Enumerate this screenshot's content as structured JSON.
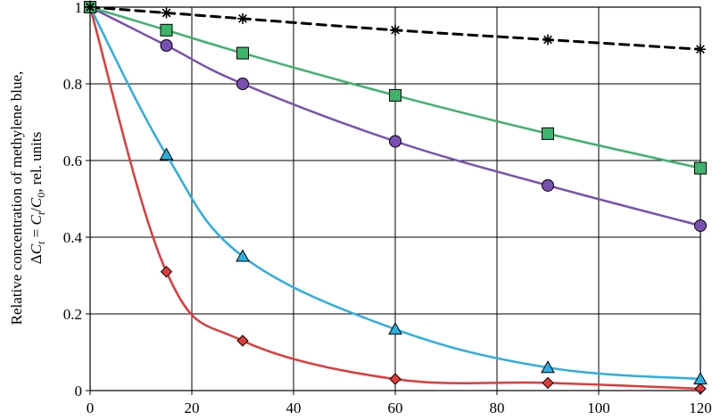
{
  "chart_data": {
    "type": "line",
    "title": "",
    "xlabel": "",
    "ylabel_line1": "Relative concentration of methylene blue,",
    "ylabel_line2": "ΔCt = Ct/C0, rel. units",
    "ylabel_parts": {
      "delta": "Δ",
      "c": "C",
      "t": "t",
      "eq": " = ",
      "slash": "/",
      "zero": "0",
      "tail": ", rel. units"
    },
    "xlim": [
      0,
      120
    ],
    "ylim": [
      0,
      1
    ],
    "xticks": [
      0,
      20,
      40,
      60,
      80,
      100,
      120
    ],
    "xtick_labels": [
      "0",
      "20",
      "40",
      "60",
      "80",
      "100",
      "120"
    ],
    "yticks": [
      0,
      0.2,
      0.4,
      0.6,
      0.8,
      1
    ],
    "ytick_labels": [
      "0",
      "0.2",
      "0.4",
      "0.6",
      "0.8",
      "1"
    ],
    "grid": true,
    "series": [
      {
        "name": "star",
        "color": "#000000",
        "marker": "star",
        "dashed": true,
        "x": [
          0,
          15,
          30,
          60,
          90,
          120
        ],
        "y": [
          1.0,
          0.985,
          0.97,
          0.94,
          0.915,
          0.89
        ]
      },
      {
        "name": "square",
        "color": "#3db36b",
        "marker": "square",
        "dashed": false,
        "x": [
          0,
          15,
          30,
          60,
          90,
          120
        ],
        "y": [
          1.0,
          0.94,
          0.88,
          0.77,
          0.67,
          0.58
        ]
      },
      {
        "name": "circle",
        "color": "#7b4fb2",
        "marker": "circle",
        "dashed": false,
        "x": [
          0,
          15,
          30,
          60,
          90,
          120
        ],
        "y": [
          1.0,
          0.9,
          0.8,
          0.65,
          0.535,
          0.43
        ]
      },
      {
        "name": "triangle",
        "color": "#2aafe0",
        "marker": "triangle",
        "dashed": false,
        "x": [
          0,
          15,
          30,
          60,
          90,
          120
        ],
        "y": [
          1.0,
          0.615,
          0.35,
          0.16,
          0.06,
          0.03
        ]
      },
      {
        "name": "diamond",
        "color": "#e23a3a",
        "marker": "diamond",
        "dashed": false,
        "x": [
          0,
          15,
          30,
          60,
          90,
          120
        ],
        "y": [
          1.0,
          0.31,
          0.13,
          0.03,
          0.02,
          0.005
        ]
      }
    ]
  }
}
